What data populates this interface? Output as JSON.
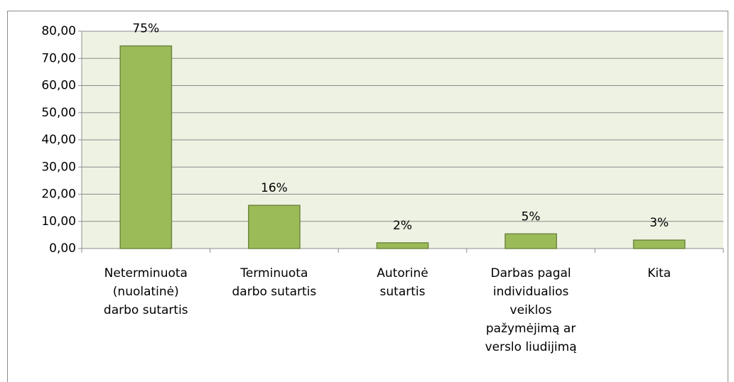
{
  "chart_data": {
    "type": "bar",
    "categories": [
      [
        "Neterminuota",
        "(nuolatinė)",
        "darbo sutartis"
      ],
      [
        "Terminuota",
        "darbo sutartis"
      ],
      [
        "Autorinė",
        "sutartis"
      ],
      [
        "Darbas pagal",
        "individualios",
        "veiklos",
        "pažymėjimą ar",
        "verslo liudijimą"
      ],
      [
        "Kita"
      ]
    ],
    "values": [
      74.6,
      15.9,
      2.1,
      5.4,
      3.1
    ],
    "value_labels": [
      "75%",
      "16%",
      "2%",
      "5%",
      "3%"
    ],
    "color": "#9bbb59",
    "ylim": [
      0,
      80
    ],
    "yticks": [
      {
        "value": 0,
        "label": "0,00"
      },
      {
        "value": 10,
        "label": "10,00"
      },
      {
        "value": 20,
        "label": "20,00"
      },
      {
        "value": 30,
        "label": "30,00"
      },
      {
        "value": 40,
        "label": "40,00"
      },
      {
        "value": 50,
        "label": "50,00"
      },
      {
        "value": 60,
        "label": "60,00"
      },
      {
        "value": 70,
        "label": "70,00"
      },
      {
        "value": 80,
        "label": "80,00"
      }
    ],
    "grid": true
  }
}
